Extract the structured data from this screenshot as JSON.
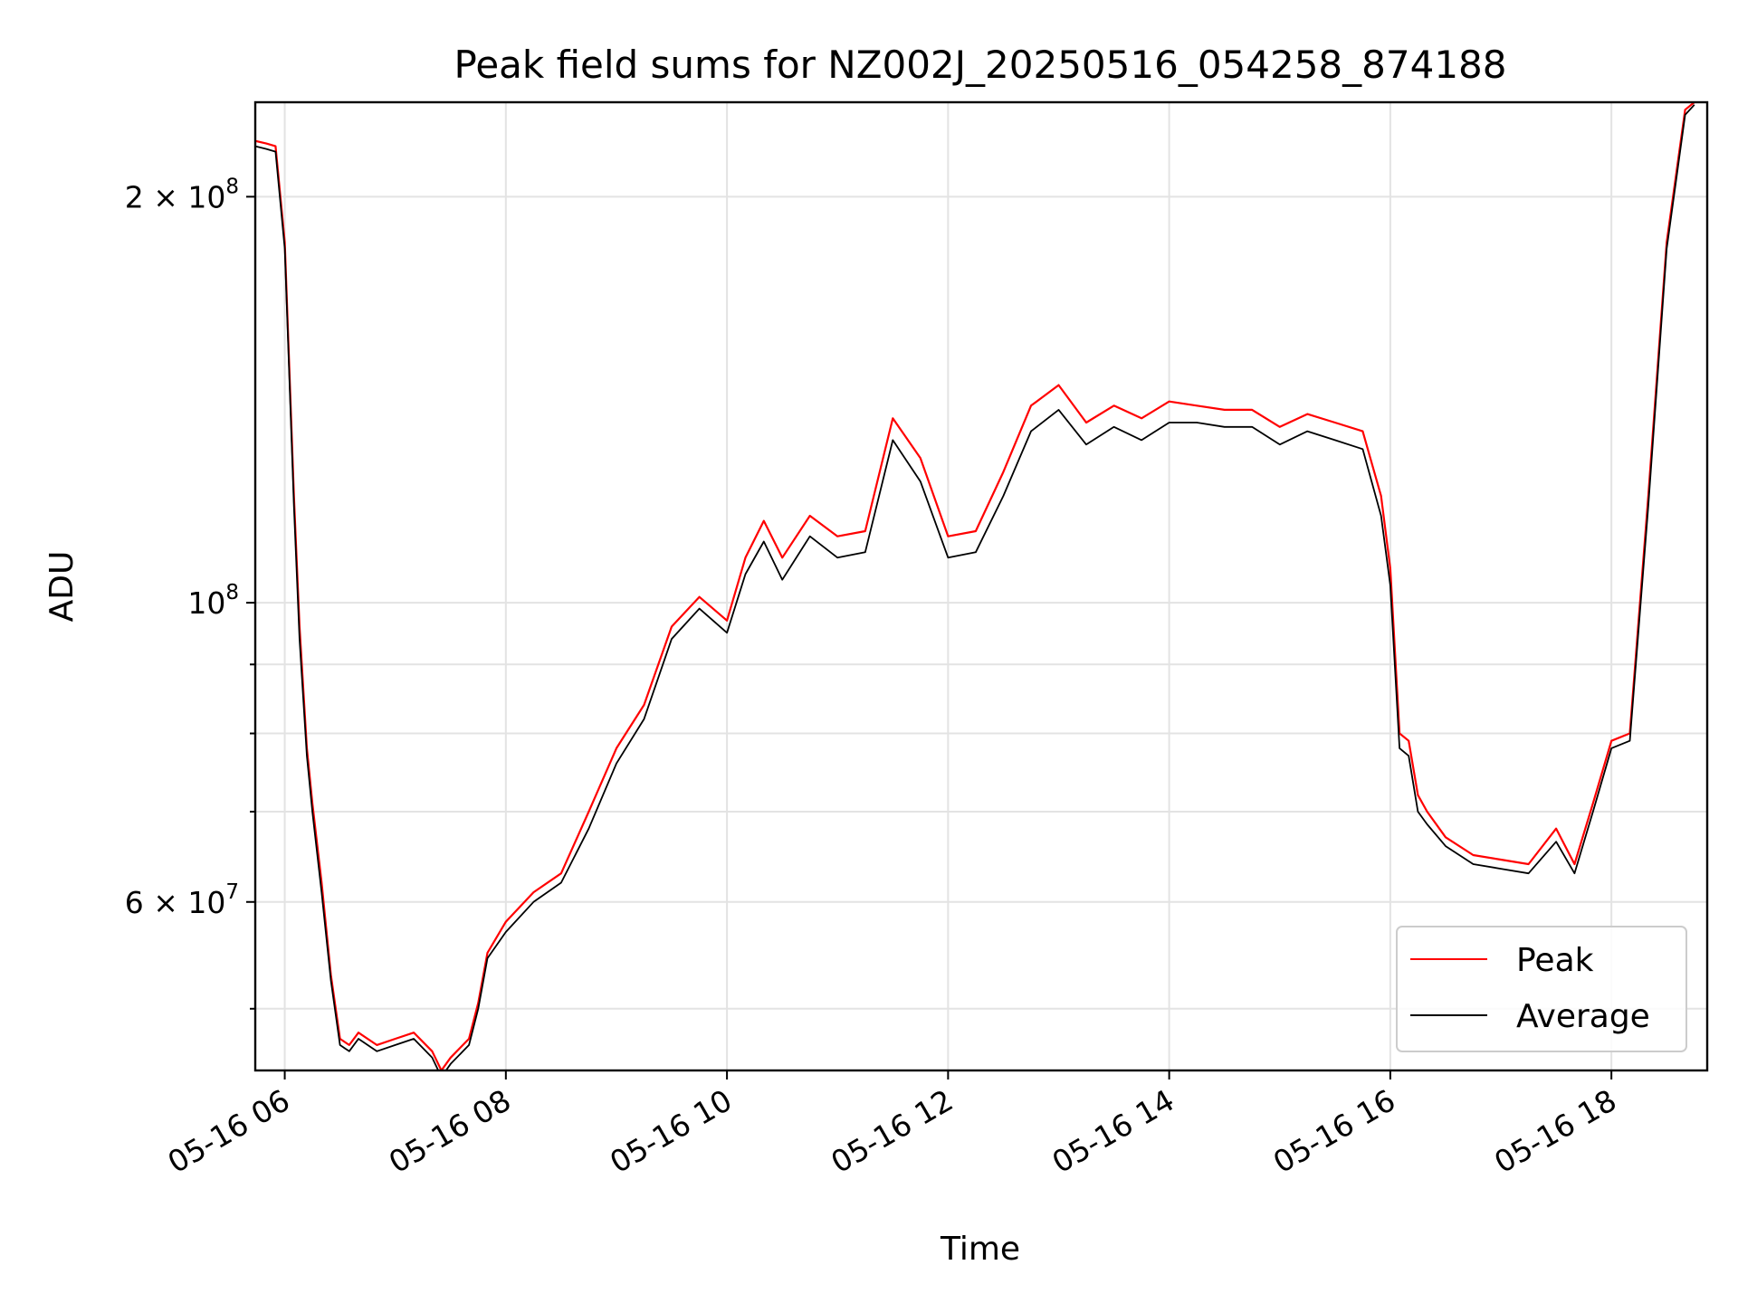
{
  "chart_data": {
    "type": "line",
    "title": "Peak field sums for NZ002J_20250516_054258_874188",
    "xlabel": "Time",
    "ylabel": "ADU",
    "yscale": "log",
    "xlim": [
      "05-16 05:44",
      "05-16 18:52"
    ],
    "ylim": [
      45000000,
      235000000
    ],
    "x_ticks": [
      {
        "value": "05-16 06:00",
        "label": "05-16 06"
      },
      {
        "value": "05-16 08:00",
        "label": "05-16 08"
      },
      {
        "value": "05-16 10:00",
        "label": "05-16 10"
      },
      {
        "value": "05-16 12:00",
        "label": "05-16 12"
      },
      {
        "value": "05-16 14:00",
        "label": "05-16 14"
      },
      {
        "value": "05-16 16:00",
        "label": "05-16 16"
      },
      {
        "value": "05-16 18:00",
        "label": "05-16 18"
      }
    ],
    "y_ticks_major": [
      {
        "value": 60000000,
        "label_mantissa": "6 × 10",
        "label_exp": "7"
      },
      {
        "value": 100000000,
        "label_mantissa": "10",
        "label_exp": "8"
      },
      {
        "value": 200000000,
        "label_mantissa": "2 × 10",
        "label_exp": "8"
      }
    ],
    "y_ticks_minor": [
      50000000,
      70000000,
      80000000,
      90000000
    ],
    "grid": true,
    "legend_position": "bottom-right",
    "series": [
      {
        "name": "Peak",
        "color": "#ff0000",
        "x": [
          "05-16 05:44",
          "05-16 05:50",
          "05-16 05:55",
          "05-16 06:00",
          "05-16 06:05",
          "05-16 06:08",
          "05-16 06:12",
          "05-16 06:15",
          "05-16 06:20",
          "05-16 06:25",
          "05-16 06:30",
          "05-16 06:35",
          "05-16 06:40",
          "05-16 06:50",
          "05-16 07:00",
          "05-16 07:10",
          "05-16 07:20",
          "05-16 07:25",
          "05-16 07:30",
          "05-16 07:40",
          "05-16 07:45",
          "05-16 07:50",
          "05-16 08:00",
          "05-16 08:15",
          "05-16 08:30",
          "05-16 08:45",
          "05-16 09:00",
          "05-16 09:15",
          "05-16 09:30",
          "05-16 09:45",
          "05-16 10:00",
          "05-16 10:10",
          "05-16 10:20",
          "05-16 10:30",
          "05-16 10:45",
          "05-16 11:00",
          "05-16 11:15",
          "05-16 11:30",
          "05-16 11:45",
          "05-16 12:00",
          "05-16 12:15",
          "05-16 12:30",
          "05-16 12:45",
          "05-16 13:00",
          "05-16 13:15",
          "05-16 13:30",
          "05-16 13:45",
          "05-16 14:00",
          "05-16 14:15",
          "05-16 14:30",
          "05-16 14:45",
          "05-16 15:00",
          "05-16 15:15",
          "05-16 15:30",
          "05-16 15:45",
          "05-16 15:55",
          "05-16 16:00",
          "05-16 16:05",
          "05-16 16:10",
          "05-16 16:15",
          "05-16 16:20",
          "05-16 16:30",
          "05-16 16:45",
          "05-16 17:00",
          "05-16 17:15",
          "05-16 17:30",
          "05-16 17:40",
          "05-16 17:50",
          "05-16 18:00",
          "05-16 18:10",
          "05-16 18:20",
          "05-16 18:30",
          "05-16 18:40",
          "05-16 18:45"
        ],
        "values": [
          220000000,
          219000000,
          218000000,
          185000000,
          120000000,
          96000000,
          78000000,
          71000000,
          62000000,
          53000000,
          47500000,
          47000000,
          48000000,
          47000000,
          47500000,
          48000000,
          46500000,
          45000000,
          46000000,
          47500000,
          50500000,
          55000000,
          58000000,
          61000000,
          63000000,
          70000000,
          78000000,
          84000000,
          96000000,
          101000000,
          97000000,
          108000000,
          115000000,
          108000000,
          116000000,
          112000000,
          113000000,
          137000000,
          128000000,
          112000000,
          113000000,
          125000000,
          140000000,
          145000000,
          136000000,
          140000000,
          137000000,
          141000000,
          140000000,
          139000000,
          139000000,
          135000000,
          138000000,
          136000000,
          134000000,
          120000000,
          106000000,
          80000000,
          79000000,
          72000000,
          70000000,
          67000000,
          65000000,
          64500000,
          64000000,
          68000000,
          64000000,
          71000000,
          79000000,
          80000000,
          120000000,
          185000000,
          232000000,
          235000000
        ]
      },
      {
        "name": "Average",
        "color": "#000000",
        "x": [
          "05-16 05:44",
          "05-16 05:50",
          "05-16 05:55",
          "05-16 06:00",
          "05-16 06:05",
          "05-16 06:08",
          "05-16 06:12",
          "05-16 06:15",
          "05-16 06:20",
          "05-16 06:25",
          "05-16 06:30",
          "05-16 06:35",
          "05-16 06:40",
          "05-16 06:50",
          "05-16 07:00",
          "05-16 07:10",
          "05-16 07:20",
          "05-16 07:25",
          "05-16 07:30",
          "05-16 07:40",
          "05-16 07:45",
          "05-16 07:50",
          "05-16 08:00",
          "05-16 08:15",
          "05-16 08:30",
          "05-16 08:45",
          "05-16 09:00",
          "05-16 09:15",
          "05-16 09:30",
          "05-16 09:45",
          "05-16 10:00",
          "05-16 10:10",
          "05-16 10:20",
          "05-16 10:30",
          "05-16 10:45",
          "05-16 11:00",
          "05-16 11:15",
          "05-16 11:30",
          "05-16 11:45",
          "05-16 12:00",
          "05-16 12:15",
          "05-16 12:30",
          "05-16 12:45",
          "05-16 13:00",
          "05-16 13:15",
          "05-16 13:30",
          "05-16 13:45",
          "05-16 14:00",
          "05-16 14:15",
          "05-16 14:30",
          "05-16 14:45",
          "05-16 15:00",
          "05-16 15:15",
          "05-16 15:30",
          "05-16 15:45",
          "05-16 15:55",
          "05-16 16:00",
          "05-16 16:05",
          "05-16 16:10",
          "05-16 16:15",
          "05-16 16:20",
          "05-16 16:30",
          "05-16 16:45",
          "05-16 17:00",
          "05-16 17:15",
          "05-16 17:30",
          "05-16 17:40",
          "05-16 17:50",
          "05-16 18:00",
          "05-16 18:10",
          "05-16 18:20",
          "05-16 18:30",
          "05-16 18:40",
          "05-16 18:45"
        ],
        "values": [
          218000000,
          217000000,
          216000000,
          183000000,
          118000000,
          94000000,
          77000000,
          70000000,
          61000000,
          52500000,
          47000000,
          46500000,
          47500000,
          46500000,
          47000000,
          47500000,
          46000000,
          44500000,
          45500000,
          47000000,
          50000000,
          54500000,
          57000000,
          60000000,
          62000000,
          68000000,
          76000000,
          82000000,
          94000000,
          99000000,
          95000000,
          105000000,
          111000000,
          104000000,
          112000000,
          108000000,
          109000000,
          132000000,
          123000000,
          108000000,
          109000000,
          120000000,
          134000000,
          139000000,
          131000000,
          135000000,
          132000000,
          136000000,
          136000000,
          135000000,
          135000000,
          131000000,
          134000000,
          132000000,
          130000000,
          116000000,
          103000000,
          78000000,
          77000000,
          70000000,
          68500000,
          66000000,
          64000000,
          63500000,
          63000000,
          66500000,
          63000000,
          70000000,
          78000000,
          79000000,
          118000000,
          183000000,
          230000000,
          234000000
        ]
      }
    ]
  }
}
